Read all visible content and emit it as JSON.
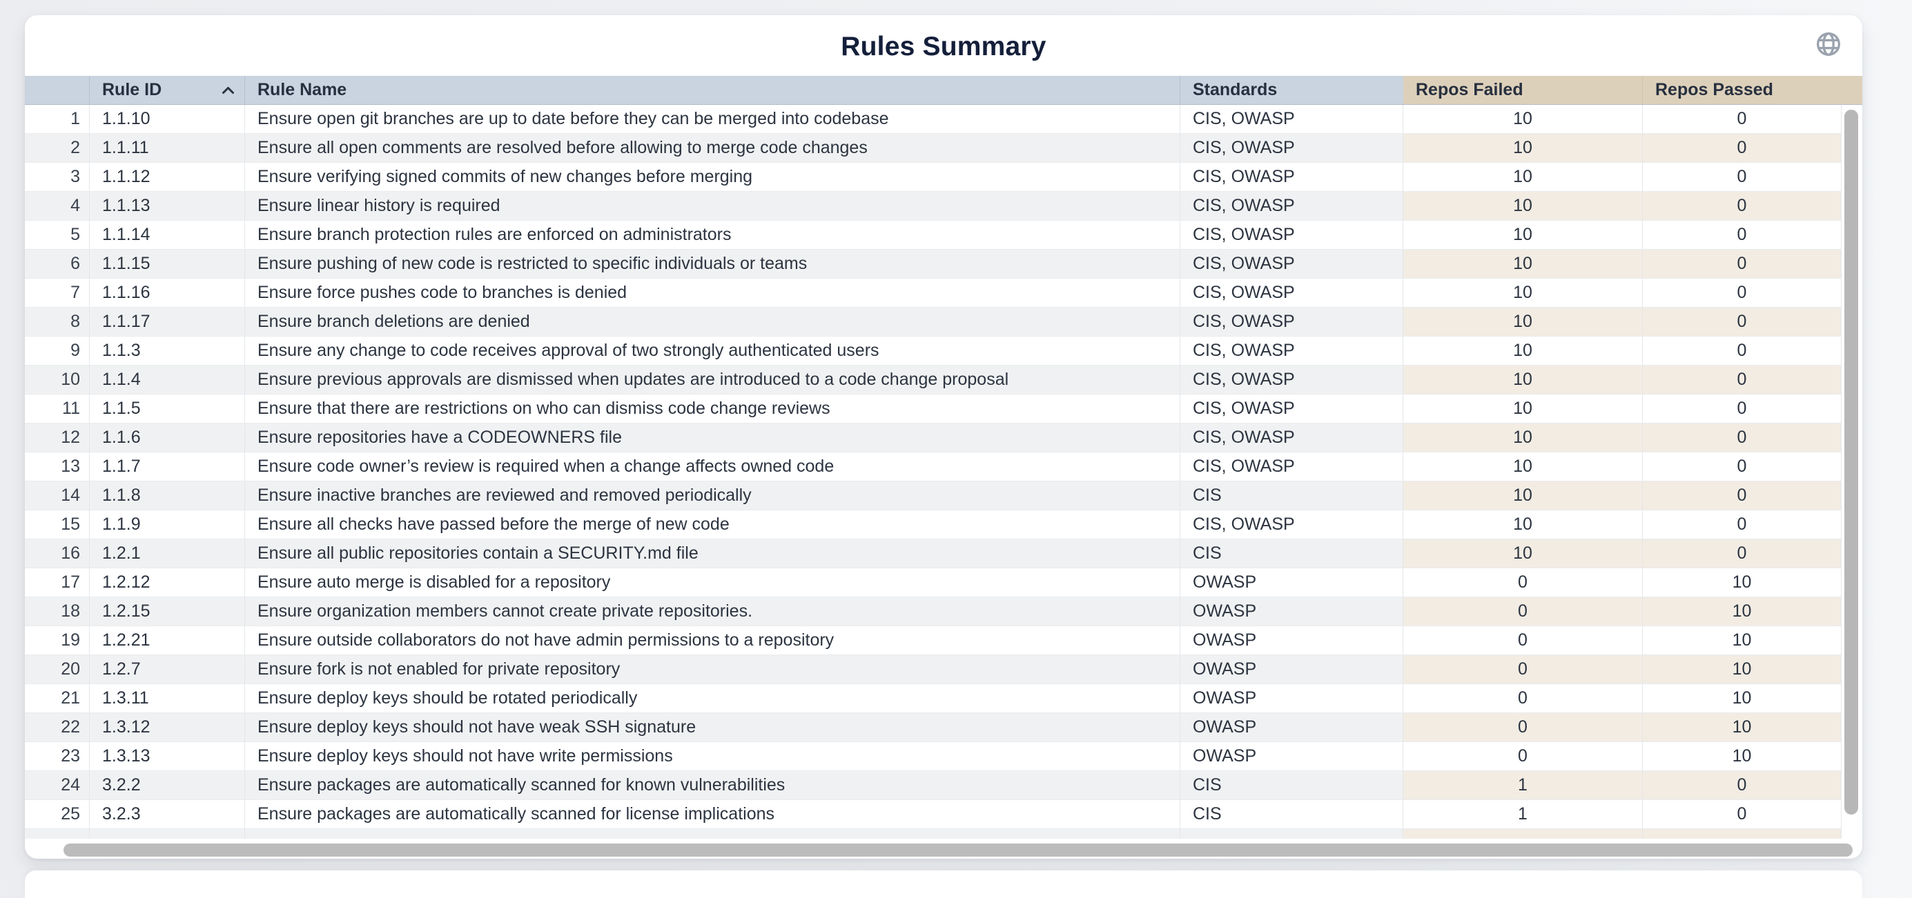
{
  "page": {
    "title": "Rules Summary"
  },
  "colors": {
    "header_blue": "#cad3e0",
    "header_tan": "#ddd0bb",
    "stripe_gray": "#f0f1f2",
    "stripe_tan": "#f2ece3",
    "title_navy": "#141f3a",
    "scrollbar_gray": "#b7b7b7"
  },
  "icons": {
    "globe": "globe-icon",
    "sort": "sort-ascending-chevron"
  },
  "table": {
    "columns": [
      {
        "label": ""
      },
      {
        "label": "Rule ID",
        "sorted": "asc"
      },
      {
        "label": "Rule Name"
      },
      {
        "label": "Standards"
      },
      {
        "label": "Repos Failed"
      },
      {
        "label": "Repos Passed"
      }
    ],
    "rows": [
      {
        "num": "1",
        "rule_id": "1.1.10",
        "rule_name": "Ensure open git branches are up to date before they can be merged into codebase",
        "standards": "CIS, OWASP",
        "repos_failed": "10",
        "repos_passed": "0"
      },
      {
        "num": "2",
        "rule_id": "1.1.11",
        "rule_name": "Ensure all open comments are resolved before allowing to merge code changes",
        "standards": "CIS, OWASP",
        "repos_failed": "10",
        "repos_passed": "0"
      },
      {
        "num": "3",
        "rule_id": "1.1.12",
        "rule_name": "Ensure verifying signed commits of new changes before merging",
        "standards": "CIS, OWASP",
        "repos_failed": "10",
        "repos_passed": "0"
      },
      {
        "num": "4",
        "rule_id": "1.1.13",
        "rule_name": "Ensure linear history is required",
        "standards": "CIS, OWASP",
        "repos_failed": "10",
        "repos_passed": "0"
      },
      {
        "num": "5",
        "rule_id": "1.1.14",
        "rule_name": "Ensure branch protection rules are enforced on administrators",
        "standards": "CIS, OWASP",
        "repos_failed": "10",
        "repos_passed": "0"
      },
      {
        "num": "6",
        "rule_id": "1.1.15",
        "rule_name": "Ensure pushing of new code is restricted to specific individuals or teams",
        "standards": "CIS, OWASP",
        "repos_failed": "10",
        "repos_passed": "0"
      },
      {
        "num": "7",
        "rule_id": "1.1.16",
        "rule_name": "Ensure force pushes code to branches is denied",
        "standards": "CIS, OWASP",
        "repos_failed": "10",
        "repos_passed": "0"
      },
      {
        "num": "8",
        "rule_id": "1.1.17",
        "rule_name": "Ensure branch deletions are denied",
        "standards": "CIS, OWASP",
        "repos_failed": "10",
        "repos_passed": "0"
      },
      {
        "num": "9",
        "rule_id": "1.1.3",
        "rule_name": "Ensure any change to code receives approval of two strongly authenticated users",
        "standards": "CIS, OWASP",
        "repos_failed": "10",
        "repos_passed": "0"
      },
      {
        "num": "10",
        "rule_id": "1.1.4",
        "rule_name": "Ensure previous approvals are dismissed when updates are introduced to a code change proposal",
        "standards": "CIS, OWASP",
        "repos_failed": "10",
        "repos_passed": "0"
      },
      {
        "num": "11",
        "rule_id": "1.1.5",
        "rule_name": "Ensure that there are restrictions on who can dismiss code change reviews",
        "standards": "CIS, OWASP",
        "repos_failed": "10",
        "repos_passed": "0"
      },
      {
        "num": "12",
        "rule_id": "1.1.6",
        "rule_name": "Ensure repositories have a CODEOWNERS file",
        "standards": "CIS, OWASP",
        "repos_failed": "10",
        "repos_passed": "0"
      },
      {
        "num": "13",
        "rule_id": "1.1.7",
        "rule_name": "Ensure code owner’s review is required when a change affects owned code",
        "standards": "CIS, OWASP",
        "repos_failed": "10",
        "repos_passed": "0"
      },
      {
        "num": "14",
        "rule_id": "1.1.8",
        "rule_name": "Ensure inactive branches are reviewed and removed periodically",
        "standards": "CIS",
        "repos_failed": "10",
        "repos_passed": "0"
      },
      {
        "num": "15",
        "rule_id": "1.1.9",
        "rule_name": "Ensure all checks have passed before the merge of new code",
        "standards": "CIS, OWASP",
        "repos_failed": "10",
        "repos_passed": "0"
      },
      {
        "num": "16",
        "rule_id": "1.2.1",
        "rule_name": "Ensure all public repositories contain a SECURITY.md file",
        "standards": "CIS",
        "repos_failed": "10",
        "repos_passed": "0"
      },
      {
        "num": "17",
        "rule_id": "1.2.12",
        "rule_name": "Ensure auto merge is disabled for a repository",
        "standards": "OWASP",
        "repos_failed": "0",
        "repos_passed": "10"
      },
      {
        "num": "18",
        "rule_id": "1.2.15",
        "rule_name": "Ensure organization members cannot create private repositories.",
        "standards": "OWASP",
        "repos_failed": "0",
        "repos_passed": "10"
      },
      {
        "num": "19",
        "rule_id": "1.2.21",
        "rule_name": "Ensure outside collaborators do not have admin permissions to a repository",
        "standards": "OWASP",
        "repos_failed": "0",
        "repos_passed": "10"
      },
      {
        "num": "20",
        "rule_id": "1.2.7",
        "rule_name": "Ensure fork is not enabled for private repository",
        "standards": "OWASP",
        "repos_failed": "0",
        "repos_passed": "10"
      },
      {
        "num": "21",
        "rule_id": "1.3.11",
        "rule_name": "Ensure deploy keys should be rotated periodically",
        "standards": "OWASP",
        "repos_failed": "0",
        "repos_passed": "10"
      },
      {
        "num": "22",
        "rule_id": "1.3.12",
        "rule_name": "Ensure deploy keys should not have weak SSH signature",
        "standards": "OWASP",
        "repos_failed": "0",
        "repos_passed": "10"
      },
      {
        "num": "23",
        "rule_id": "1.3.13",
        "rule_name": "Ensure deploy keys should not have write permissions",
        "standards": "OWASP",
        "repos_failed": "0",
        "repos_passed": "10"
      },
      {
        "num": "24",
        "rule_id": "3.2.2",
        "rule_name": "Ensure packages are automatically scanned for known vulnerabilities",
        "standards": "CIS",
        "repos_failed": "1",
        "repos_passed": "0"
      },
      {
        "num": "25",
        "rule_id": "3.2.3",
        "rule_name": "Ensure packages are automatically scanned for license implications",
        "standards": "CIS",
        "repos_failed": "1",
        "repos_passed": "0"
      }
    ]
  }
}
